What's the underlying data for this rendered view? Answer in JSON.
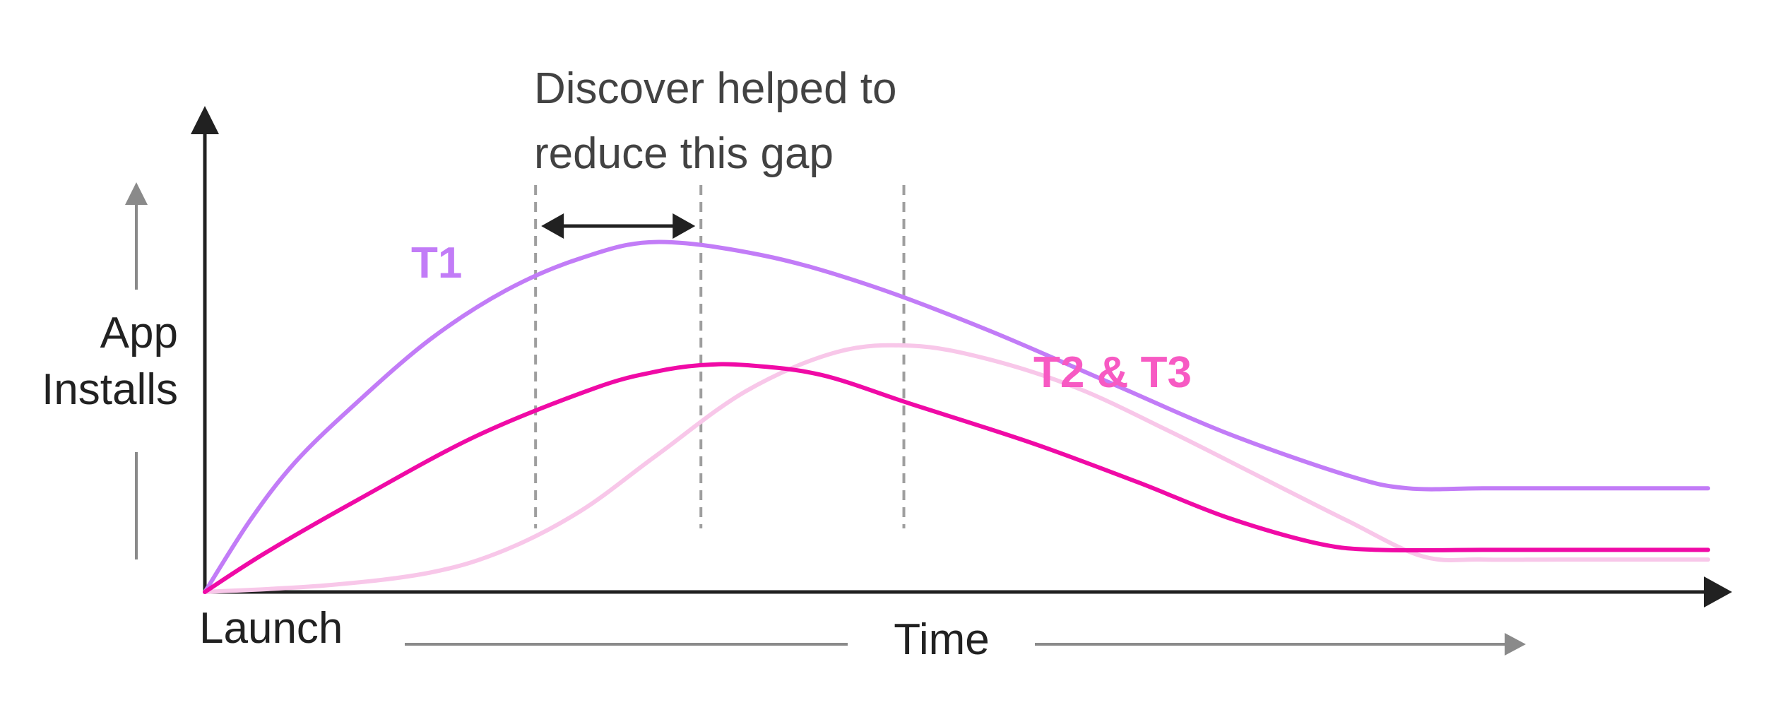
{
  "chart_data": {
    "type": "line",
    "title": "",
    "xlabel": "Time",
    "ylabel": "App Installs",
    "x_origin_label": "Launch",
    "annotation": {
      "lines": [
        "Discover helped to",
        "reduce this gap"
      ]
    },
    "grid": false,
    "series": [
      {
        "name": "T1",
        "color": "#C27CF7",
        "label_placement": "above-peak",
        "x": [
          0,
          3,
          6,
          10,
          15,
          20,
          25,
          30,
          37,
          44,
          52,
          60,
          68,
          76,
          80,
          85,
          90,
          100
        ],
        "y": [
          0,
          22,
          40,
          58,
          78,
          93,
          103,
          108,
          104,
          95,
          81,
          65,
          49,
          36,
          32,
          32,
          32,
          32
        ]
      },
      {
        "name": "T2 & T3",
        "color": "#F00AA6",
        "label_placement": "upper-right",
        "x": [
          0,
          4,
          10,
          18,
          26,
          30,
          33,
          36,
          41,
          47,
          55,
          62,
          68,
          74,
          78,
          85,
          90,
          100
        ],
        "y": [
          0,
          12,
          28,
          48,
          63,
          68,
          70,
          70,
          67,
          58,
          46,
          34,
          23,
          15,
          13,
          13,
          13,
          13
        ]
      },
      {
        "name": "",
        "color": "#F8C7E9",
        "x": [
          0,
          8,
          15,
          20,
          25,
          30,
          36,
          42,
          47,
          52,
          58,
          64,
          70,
          76,
          81,
          85,
          90,
          100
        ],
        "y": [
          0,
          2,
          6,
          13,
          25,
          42,
          62,
          74,
          76,
          72,
          63,
          50,
          36,
          22,
          11,
          10,
          10,
          10
        ]
      }
    ],
    "marker_lines_x": [
      22,
      33,
      46.5
    ],
    "gap_arrow": {
      "from": 22,
      "to": 33
    },
    "xlim": [
      0,
      100
    ],
    "ylim": [
      0,
      150
    ]
  }
}
